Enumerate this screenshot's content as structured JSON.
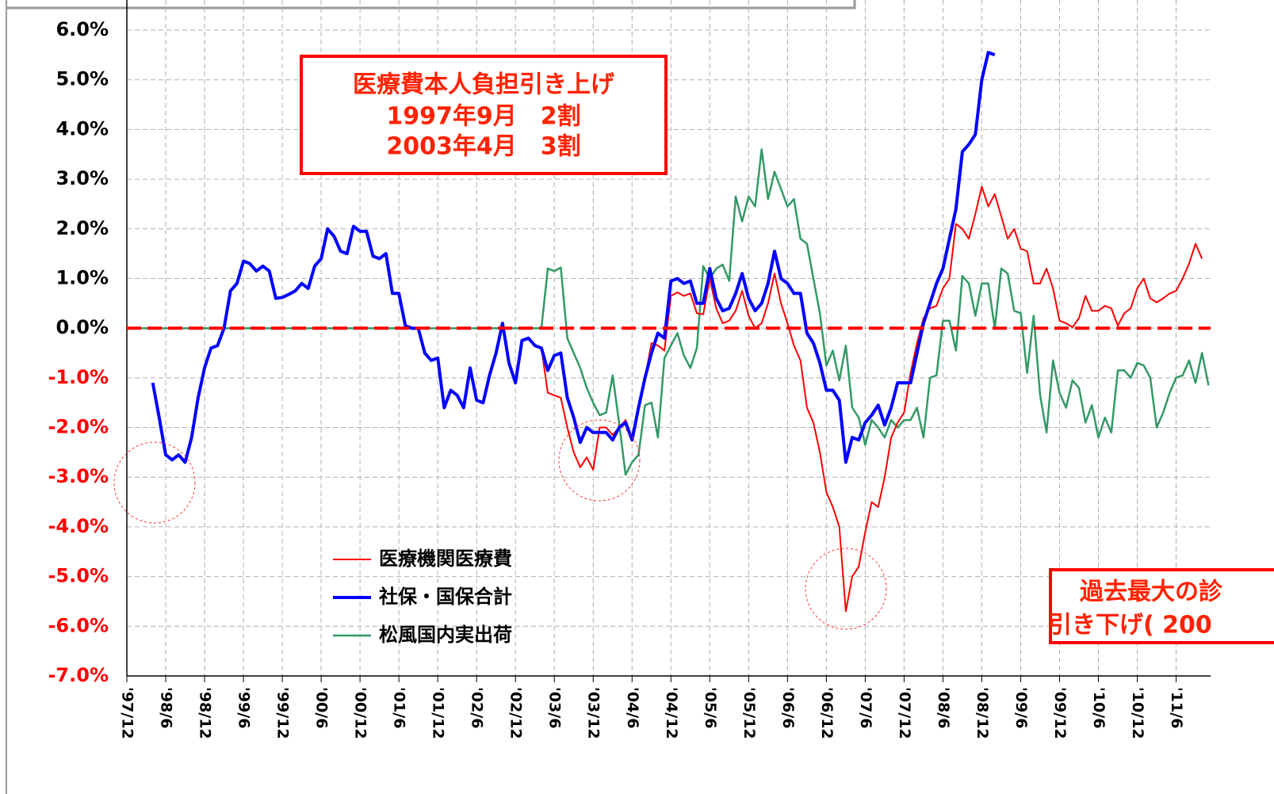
{
  "chart_data": {
    "type": "line",
    "categories": [
      "'97/12",
      null,
      null,
      null,
      null,
      null,
      "'98/6",
      null,
      null,
      null,
      null,
      null,
      "'98/12",
      null,
      null,
      null,
      null,
      null,
      "'99/6",
      null,
      null,
      null,
      null,
      null,
      "'99/12",
      null,
      null,
      null,
      null,
      null,
      "'00/6",
      null,
      null,
      null,
      null,
      null,
      "'00/12",
      null,
      null,
      null,
      null,
      null,
      "'01/6",
      null,
      null,
      null,
      null,
      null,
      "'01/12",
      null,
      null,
      null,
      null,
      null,
      "'02/6",
      null,
      null,
      null,
      null,
      null,
      "'02/12",
      null,
      null,
      null,
      null,
      null,
      "'03/6",
      null,
      null,
      null,
      null,
      null,
      "'03/12",
      null,
      null,
      null,
      null,
      null,
      "'04/6",
      null,
      null,
      null,
      null,
      null,
      "'04/12",
      null,
      null,
      null,
      null,
      null,
      "'05/6",
      null,
      null,
      null,
      null,
      null,
      "'05/12",
      null,
      null,
      null,
      null,
      null,
      "'06/6",
      null,
      null,
      null,
      null,
      null,
      "'06/12",
      null,
      null,
      null,
      null,
      null,
      "'07/6",
      null,
      null,
      null,
      null,
      null,
      "'07/12",
      null,
      null,
      null,
      null,
      null,
      "'08/6",
      null,
      null,
      null,
      null,
      null,
      "'08/12",
      null,
      null,
      null,
      null,
      null,
      "'09/6",
      null,
      null,
      null,
      null,
      null,
      "'09/12",
      null,
      null,
      null,
      null,
      null,
      "'10/6",
      null,
      null,
      null,
      null,
      null,
      "'10/12",
      null,
      null,
      null,
      null,
      null,
      "'11/6",
      null,
      null,
      null,
      null,
      null
    ],
    "series": [
      {
        "name": "医療機関医療費",
        "color": "#ff0000",
        "values": [
          null,
          null,
          null,
          null,
          null,
          null,
          null,
          null,
          null,
          null,
          null,
          null,
          null,
          null,
          null,
          null,
          null,
          null,
          null,
          null,
          null,
          null,
          null,
          null,
          null,
          null,
          null,
          null,
          null,
          null,
          null,
          null,
          null,
          null,
          null,
          null,
          null,
          null,
          null,
          null,
          null,
          null,
          null,
          null,
          null,
          null,
          null,
          null,
          null,
          null,
          null,
          null,
          null,
          null,
          null,
          null,
          null,
          null,
          null,
          null,
          null,
          null,
          null,
          null,
          -0.4,
          -1.3,
          -1.35,
          -1.4,
          -2.0,
          -2.5,
          -2.8,
          -2.6,
          -2.85,
          -2.0,
          -2.0,
          -2.15,
          -2.0,
          -1.85,
          -2.2,
          -1.6,
          -1.0,
          -0.3,
          -0.35,
          -0.45,
          0.65,
          0.72,
          0.65,
          0.7,
          0.3,
          0.28,
          1.0,
          0.4,
          0.1,
          0.15,
          0.35,
          0.75,
          0.25,
          0.0,
          0.1,
          0.5,
          1.1,
          0.5,
          0.1,
          -0.35,
          -0.65,
          -1.6,
          -1.9,
          -2.5,
          -3.3,
          -3.6,
          -4.0,
          -5.7,
          -5.0,
          -4.8,
          -4.1,
          -3.5,
          -3.6,
          -3.0,
          -2.2,
          -1.9,
          -1.7,
          -0.9,
          -0.3,
          0.2,
          0.4,
          0.45,
          0.8,
          1.0,
          2.1,
          2.0,
          1.8,
          2.3,
          2.85,
          2.45,
          2.7,
          2.25,
          1.8,
          2.0,
          1.6,
          1.55,
          0.9,
          0.9,
          1.2,
          0.8,
          0.15,
          0.1,
          0.02,
          0.2,
          0.65,
          0.35,
          0.35,
          0.45,
          0.4,
          0.05,
          0.3,
          0.4,
          0.8,
          1.0,
          0.6,
          0.52,
          0.6,
          0.7,
          0.75,
          1.0,
          1.3,
          1.7,
          1.4,
          null
        ]
      },
      {
        "name": "社保・国保合計",
        "color": "#0000ff",
        "values": [
          null,
          null,
          null,
          null,
          -1.1,
          -1.8,
          -2.55,
          -2.65,
          -2.55,
          -2.7,
          -2.2,
          -1.4,
          -0.8,
          -0.4,
          -0.35,
          0.0,
          0.75,
          0.9,
          1.35,
          1.3,
          1.15,
          1.25,
          1.15,
          0.6,
          0.62,
          0.68,
          0.75,
          0.9,
          0.8,
          1.25,
          1.4,
          2.0,
          1.85,
          1.55,
          1.5,
          2.05,
          1.95,
          1.95,
          1.45,
          1.4,
          1.5,
          0.7,
          0.7,
          0.05,
          0.0,
          0.0,
          -0.5,
          -0.65,
          -0.6,
          -1.6,
          -1.25,
          -1.35,
          -1.6,
          -0.8,
          -1.45,
          -1.5,
          -0.95,
          -0.5,
          0.1,
          -0.7,
          -1.1,
          -0.25,
          -0.2,
          -0.35,
          -0.4,
          -0.85,
          -0.55,
          -0.5,
          -1.4,
          -1.8,
          -2.3,
          -2.0,
          -2.1,
          -2.1,
          -2.1,
          -2.25,
          -2.0,
          -1.9,
          -2.25,
          -1.6,
          -1.0,
          -0.5,
          -0.1,
          -0.2,
          0.95,
          1.0,
          0.9,
          0.95,
          0.5,
          0.5,
          1.2,
          0.6,
          0.35,
          0.4,
          0.7,
          1.1,
          0.6,
          0.35,
          0.5,
          0.9,
          1.55,
          1.0,
          0.9,
          0.7,
          0.7,
          -0.1,
          -0.3,
          -0.7,
          -1.25,
          -1.25,
          -1.45,
          -2.7,
          -2.2,
          -2.25,
          -1.9,
          -1.75,
          -1.55,
          -1.95,
          -1.6,
          -1.1,
          -1.1,
          -1.1,
          -0.5,
          0.1,
          0.5,
          0.9,
          1.2,
          1.8,
          2.4,
          3.55,
          3.7,
          3.9,
          5.0,
          5.55,
          5.5,
          null,
          null,
          null,
          null,
          null,
          null,
          null,
          null,
          null,
          null,
          null,
          null,
          null,
          null,
          null,
          null,
          null,
          null,
          null,
          null,
          null,
          null,
          null,
          null,
          null,
          null,
          null,
          null,
          null,
          null,
          null,
          null,
          null
        ]
      },
      {
        "name": "松風国内実出荷",
        "color": "#339966",
        "values": [
          0,
          0,
          0,
          0,
          0,
          0,
          0,
          0,
          0,
          0,
          0,
          0,
          0,
          0,
          0,
          0,
          0,
          0,
          0,
          0,
          0,
          0,
          0,
          0,
          0,
          0,
          0,
          0,
          0,
          0,
          0,
          0,
          0,
          0,
          0,
          0,
          0,
          0,
          0,
          0,
          0,
          0,
          0,
          0,
          0,
          0,
          0,
          0,
          0,
          0,
          0,
          0,
          0,
          0,
          0,
          0,
          0,
          0,
          0,
          0,
          0,
          0,
          0,
          0,
          0,
          1.2,
          1.15,
          1.22,
          -0.2,
          -0.5,
          -0.8,
          -1.2,
          -1.5,
          -1.75,
          -1.7,
          -0.95,
          -1.9,
          -2.95,
          -2.7,
          -2.55,
          -1.55,
          -1.5,
          -2.2,
          -0.6,
          -0.35,
          -0.1,
          -0.55,
          -0.8,
          -0.4,
          1.25,
          1.0,
          1.2,
          1.28,
          0.95,
          2.65,
          2.15,
          2.65,
          2.45,
          3.6,
          2.6,
          3.15,
          2.8,
          2.45,
          2.6,
          1.8,
          1.7,
          1.0,
          0.3,
          -0.75,
          -0.45,
          -1.05,
          -0.35,
          -1.6,
          -1.8,
          -2.35,
          -1.85,
          -2.0,
          -2.2,
          -1.85,
          -2.0,
          -1.85,
          -1.85,
          -1.6,
          -2.2,
          -1.0,
          -0.95,
          0.15,
          0.15,
          -0.45,
          1.05,
          0.9,
          0.25,
          0.9,
          0.9,
          0.0,
          1.2,
          1.1,
          0.35,
          0.3,
          -0.9,
          0.25,
          -1.35,
          -2.1,
          -0.65,
          -1.3,
          -1.6,
          -1.05,
          -1.2,
          -1.9,
          -1.55,
          -2.2,
          -1.8,
          -2.1,
          -0.85,
          -0.85,
          -1.0,
          -0.7,
          -0.75,
          -1.0,
          -2.0,
          -1.7,
          -1.3,
          -1.0,
          -0.95,
          -0.65,
          -1.1,
          -0.5,
          -1.15
        ]
      }
    ],
    "ylim": [
      -7,
      6
    ],
    "yticks": [
      {
        "value": -7,
        "label": "-7.0%"
      },
      {
        "value": -6,
        "label": "-6.0%"
      },
      {
        "value": -5,
        "label": "-5.0%"
      },
      {
        "value": -4,
        "label": "-4.0%"
      },
      {
        "value": -3,
        "label": "-3.0%"
      },
      {
        "value": -2,
        "label": "-2.0%"
      },
      {
        "value": -1,
        "label": "-1.0%"
      },
      {
        "value": 0,
        "label": "0.0%"
      },
      {
        "value": 1,
        "label": "1.0%"
      },
      {
        "value": 2,
        "label": "2.0%"
      },
      {
        "value": 3,
        "label": "3.0%"
      },
      {
        "value": 4,
        "label": "4.0%"
      },
      {
        "value": 5,
        "label": "5.0%"
      },
      {
        "value": 6,
        "label": "6.0%"
      }
    ],
    "grid": true,
    "annotations": [
      "医療費本人負担引き上げ",
      "1997年9月　2割",
      "2003年4月　3割",
      "過去最大の診",
      "引き下げ( 200"
    ]
  }
}
